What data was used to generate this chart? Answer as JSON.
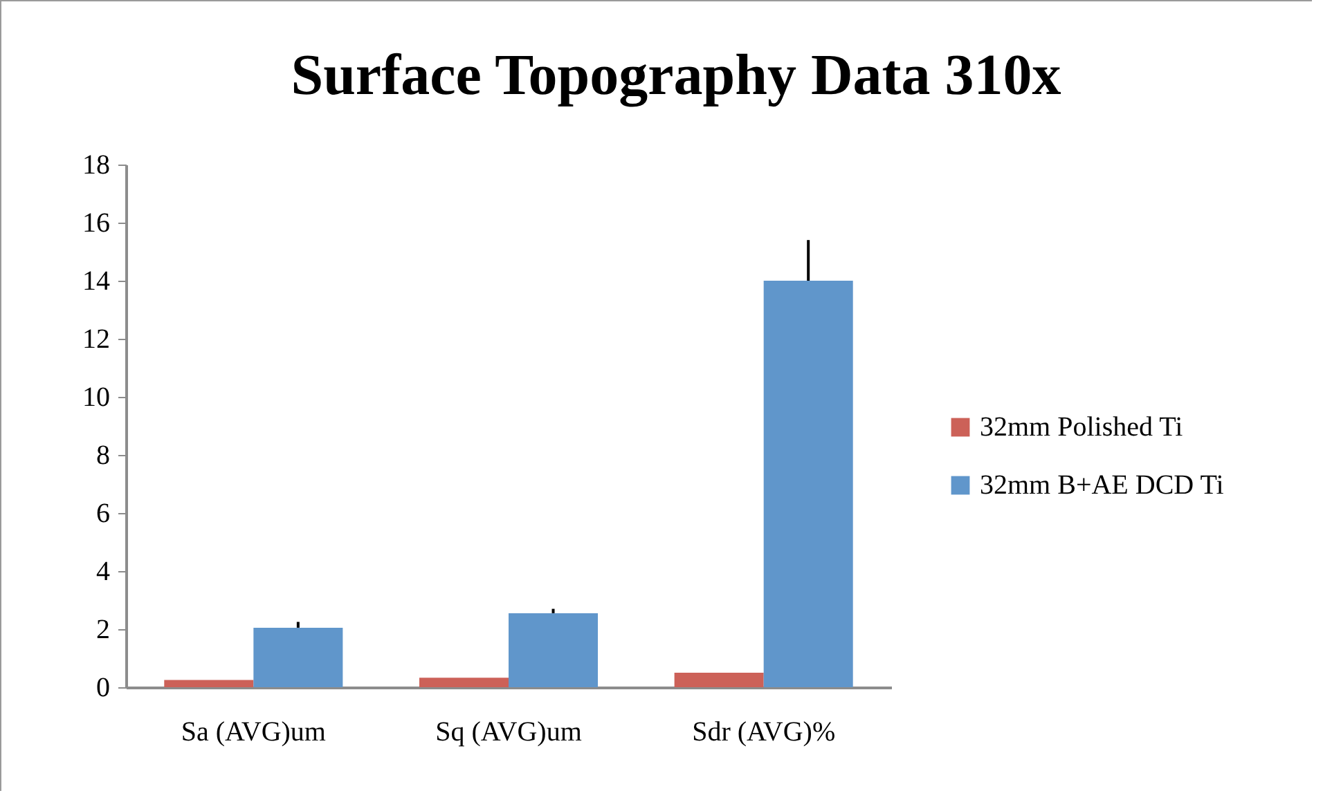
{
  "chart_data": {
    "type": "bar",
    "title": "Surface Topography Data 310x",
    "categories": [
      "Sa (AVG)um",
      "Sq (AVG)um",
      "Sdr (AVG)%"
    ],
    "series": [
      {
        "name": "32mm Polished Ti",
        "color": "#cc6158",
        "values": [
          0.25,
          0.33,
          0.5
        ]
      },
      {
        "name": "32mm B+AE DCD Ti",
        "color": "#6096cb",
        "values": [
          2.05,
          2.55,
          14.0
        ],
        "errors": [
          [
            2.05,
            2.25
          ],
          [
            2.55,
            2.7
          ],
          [
            14.0,
            15.4
          ]
        ]
      }
    ],
    "ylim": [
      0,
      18
    ],
    "yticks": [
      0,
      2,
      4,
      6,
      8,
      10,
      12,
      14,
      16,
      18
    ],
    "grid": false,
    "legend": "right"
  }
}
